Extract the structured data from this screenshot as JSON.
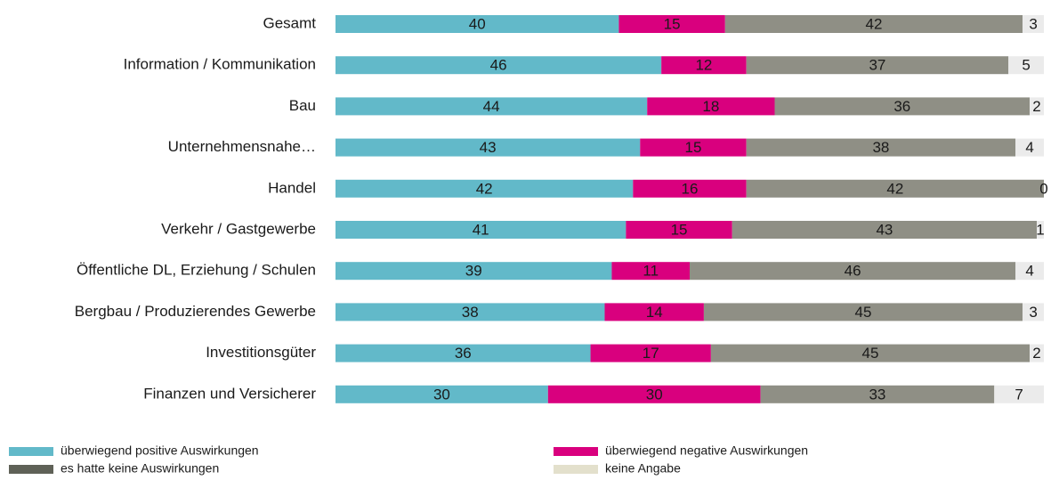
{
  "chart_data": {
    "type": "stacked-bar-horizontal",
    "categories": [
      "Gesamt",
      "Information / Kommunikation",
      "Bau",
      "Unternehmensnahe…",
      "Handel",
      "Verkehr / Gastgewerbe",
      "Öffentliche DL, Erziehung / Schulen",
      "Bergbau / Produzierendes Gewerbe",
      "Investitionsgüter",
      "Finanzen und Versicherer"
    ],
    "xlim": [
      0,
      100
    ],
    "series": [
      {
        "name": "überwiegend positive Auswirkungen",
        "color": "#62b9c9",
        "legend_color": "#62b9c9",
        "values": [
          40,
          46,
          44,
          43,
          42,
          41,
          39,
          38,
          36,
          30
        ]
      },
      {
        "name": "überwiegend negative Auswirkungen",
        "color": "#d9007e",
        "legend_color": "#d9007e",
        "values": [
          15,
          12,
          18,
          15,
          16,
          15,
          11,
          14,
          17,
          30
        ]
      },
      {
        "name": "es hatte keine Auswirkungen",
        "color": "#8f8f85",
        "legend_color": "#5f6157",
        "values": [
          42,
          37,
          36,
          38,
          42,
          43,
          46,
          45,
          45,
          33
        ]
      },
      {
        "name": "keine Angabe",
        "color": "#ebebeb",
        "legend_color": "#e3e0cc",
        "values": [
          3,
          5,
          2,
          4,
          0,
          1,
          4,
          3,
          2,
          7
        ]
      }
    ]
  }
}
